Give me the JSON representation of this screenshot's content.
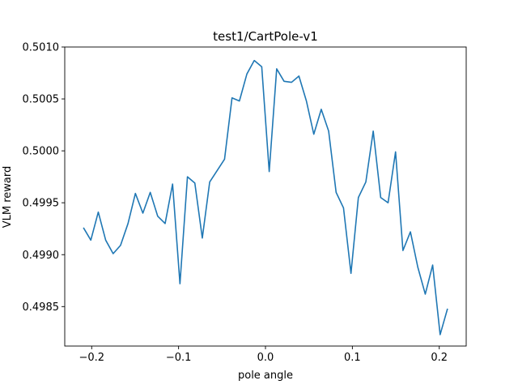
{
  "chart_data": {
    "type": "line",
    "title": "test1/CartPole-v1",
    "xlabel": "pole angle",
    "ylabel": "VLM reward",
    "xlim": [
      -0.231,
      0.231
    ],
    "ylim": [
      0.49812,
      0.501
    ],
    "xticks": [
      -0.2,
      -0.1,
      0.0,
      0.1,
      0.2
    ],
    "xtick_labels": [
      "−0.2",
      "−0.1",
      "0.0",
      "0.1",
      "0.2"
    ],
    "yticks": [
      0.4985,
      0.499,
      0.4995,
      0.5,
      0.5005,
      0.501
    ],
    "ytick_labels": [
      "0.4985",
      "0.4990",
      "0.4995",
      "0.5000",
      "0.5005",
      "0.5010"
    ],
    "grid": false,
    "line_color": "#1f77b4",
    "series": [
      {
        "x": [
          -0.2095,
          -0.201,
          -0.1924,
          -0.1839,
          -0.1753,
          -0.1668,
          -0.1582,
          -0.1497,
          -0.1411,
          -0.1326,
          -0.124,
          -0.1155,
          -0.1069,
          -0.0984,
          -0.0898,
          -0.0813,
          -0.0727,
          -0.0642,
          -0.0556,
          -0.0471,
          -0.0385,
          -0.03,
          -0.0214,
          -0.0129,
          -0.0043,
          0.0043,
          0.0129,
          0.0214,
          0.03,
          0.0385,
          0.0471,
          0.0556,
          0.0642,
          0.0727,
          0.0813,
          0.0898,
          0.0984,
          0.1069,
          0.1155,
          0.124,
          0.1326,
          0.1411,
          0.1497,
          0.1582,
          0.1668,
          0.1753,
          0.1839,
          0.1924,
          0.201,
          0.2095
        ],
        "values": [
          0.49926,
          0.49914,
          0.49941,
          0.49914,
          0.49901,
          0.49909,
          0.4993,
          0.49959,
          0.4994,
          0.4996,
          0.49937,
          0.4993,
          0.49968,
          0.49872,
          0.49975,
          0.49969,
          0.49916,
          0.4997,
          0.49981,
          0.49992,
          0.50051,
          0.50048,
          0.50074,
          0.50087,
          0.50081,
          0.4998,
          0.50079,
          0.50067,
          0.50066,
          0.50072,
          0.50048,
          0.50016,
          0.5004,
          0.50019,
          0.4996,
          0.49945,
          0.49882,
          0.49955,
          0.4997,
          0.50019,
          0.49955,
          0.4995,
          0.49999,
          0.49904,
          0.49922,
          0.49888,
          0.49862,
          0.4989,
          0.49823,
          0.49848
        ]
      }
    ]
  }
}
